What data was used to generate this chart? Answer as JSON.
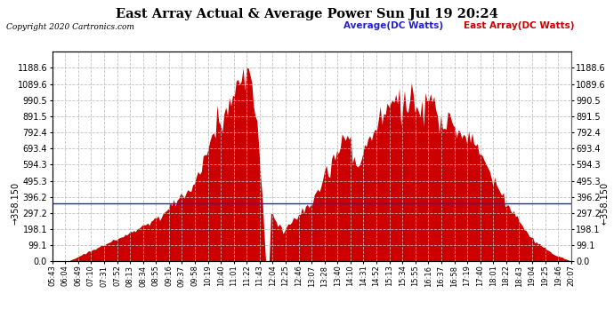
{
  "title": "East Array Actual & Average Power Sun Jul 19 20:24",
  "copyright": "Copyright 2020 Cartronics.com",
  "legend_avg": "Average(DC Watts)",
  "legend_east": "East Array(DC Watts)",
  "average_value": 358.15,
  "y_max": 1288.0,
  "y_ticks": [
    0.0,
    99.1,
    198.1,
    297.2,
    396.2,
    495.3,
    594.3,
    693.4,
    792.4,
    891.5,
    990.5,
    1089.6,
    1188.6
  ],
  "background_color": "#ffffff",
  "fill_color": "#cc0000",
  "avg_line_color": "#2222cc",
  "grid_color": "#bbbbbb",
  "title_color": "#000000",
  "time_labels": [
    "05:43",
    "06:04",
    "06:49",
    "07:10",
    "07:31",
    "07:52",
    "08:13",
    "08:34",
    "08:55",
    "09:16",
    "09:37",
    "09:58",
    "10:19",
    "10:40",
    "11:01",
    "11:22",
    "11:43",
    "12:04",
    "12:25",
    "12:46",
    "13:07",
    "13:28",
    "13:40",
    "14:10",
    "14:31",
    "14:52",
    "15:13",
    "15:34",
    "15:55",
    "16:16",
    "16:37",
    "16:58",
    "17:19",
    "17:40",
    "18:01",
    "18:22",
    "18:43",
    "19:04",
    "19:25",
    "19:46",
    "20:07"
  ]
}
